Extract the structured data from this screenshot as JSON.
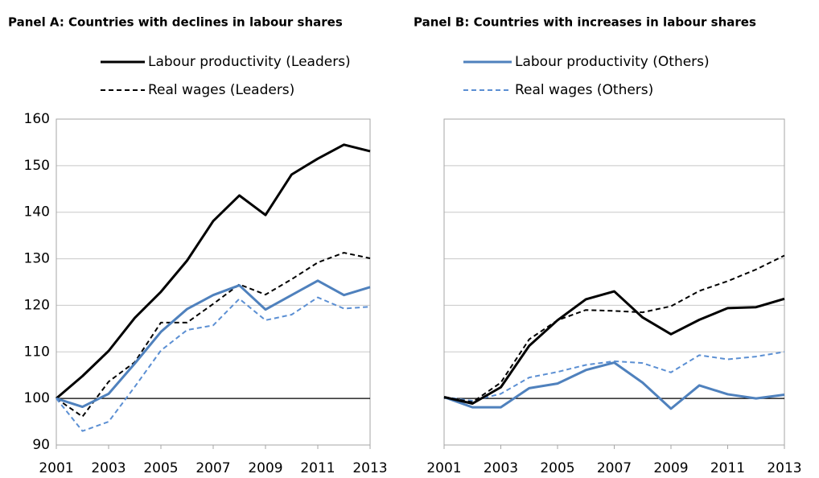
{
  "chart_data": [
    {
      "type": "line",
      "title": "Panel A: Countries with declines in labour shares",
      "x": [
        2001,
        2002,
        2003,
        2004,
        2005,
        2006,
        2007,
        2008,
        2009,
        2010,
        2011,
        2012,
        2013
      ],
      "xlim": [
        2001,
        2013
      ],
      "xticks": [
        2001,
        2003,
        2005,
        2007,
        2009,
        2011,
        2013
      ],
      "ylim": [
        90,
        160
      ],
      "yticks": [
        90,
        100,
        110,
        120,
        130,
        140,
        150,
        160
      ],
      "ytick_labels": true,
      "grid": true,
      "hline": 100,
      "series": [
        {
          "name": "Labour productivity (Leaders)",
          "color": "#000000",
          "dash": false,
          "values": [
            100,
            104.8,
            110.2,
            117.3,
            122.9,
            129.6,
            138.1,
            143.6,
            139.4,
            148.1,
            151.5,
            154.5,
            153.1
          ]
        },
        {
          "name": "Real wages (Leaders)",
          "color": "#000000",
          "dash": true,
          "values": [
            100,
            96.1,
            103.6,
            107.8,
            116.3,
            116.3,
            120.3,
            124.5,
            122.3,
            125.6,
            129.2,
            131.3,
            130.1
          ]
        },
        {
          "color": "#4f81bd",
          "dash": false,
          "values": [
            100,
            98.2,
            101,
            107.5,
            114.3,
            119.2,
            122.2,
            124.3,
            119.1,
            122.2,
            125.3,
            122.2,
            123.9
          ]
        },
        {
          "color": "#5b8fd3",
          "dash": true,
          "values": [
            100,
            93,
            95,
            102.5,
            110.3,
            114.7,
            115.7,
            121.4,
            116.8,
            118,
            121.7,
            119.3,
            119.7
          ]
        }
      ]
    },
    {
      "type": "line",
      "title": "Panel B: Countries with increases in labour shares",
      "x": [
        2001,
        2002,
        2003,
        2004,
        2005,
        2006,
        2007,
        2008,
        2009,
        2010,
        2011,
        2012,
        2013
      ],
      "xlim": [
        2001,
        2013
      ],
      "xticks": [
        2001,
        2003,
        2005,
        2007,
        2009,
        2011,
        2013
      ],
      "ylim": [
        90,
        160
      ],
      "yticks": [
        90,
        100,
        110,
        120,
        130,
        140,
        150,
        160
      ],
      "ytick_labels": false,
      "grid": true,
      "hline": 100,
      "series": [
        {
          "name": "Labour productivity (Others)",
          "color": "#4f81bd",
          "dash": false,
          "values": [
            100.3,
            98.1,
            98.1,
            102.2,
            103.2,
            106.1,
            107.7,
            103.4,
            97.8,
            102.8,
            100.9,
            100,
            100.8
          ]
        },
        {
          "name": "Real wages (Others)",
          "color": "#5b8fd3",
          "dash": true,
          "values": [
            100.3,
            99.5,
            101,
            104.5,
            105.7,
            107.2,
            108,
            107.6,
            105.6,
            109.3,
            108.4,
            109,
            110
          ]
        },
        {
          "color": "#000000",
          "dash": false,
          "values": [
            100.3,
            98.9,
            102.4,
            111.3,
            116.8,
            121.3,
            123,
            117.4,
            113.8,
            116.9,
            119.4,
            119.6,
            121.4
          ]
        },
        {
          "color": "#000000",
          "dash": true,
          "values": [
            100.3,
            99.2,
            103.4,
            112.7,
            116.8,
            119,
            118.8,
            118.5,
            119.8,
            123.1,
            125.2,
            127.7,
            130.7
          ]
        }
      ]
    }
  ]
}
